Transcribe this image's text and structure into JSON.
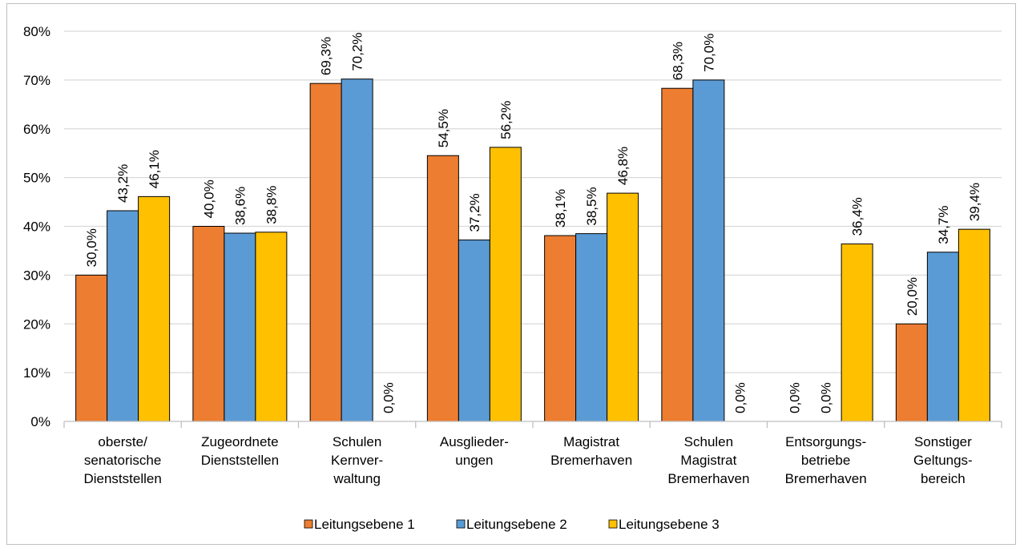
{
  "chart_data": {
    "type": "bar",
    "title": "",
    "xlabel": "",
    "ylabel": "",
    "ylim": [
      0,
      80
    ],
    "y_ticks": [
      "0%",
      "10%",
      "20%",
      "30%",
      "40%",
      "50%",
      "60%",
      "70%",
      "80%"
    ],
    "grid": true,
    "legend_position": "bottom",
    "categories": [
      [
        "oberste/",
        "senatorische",
        "Dienststellen"
      ],
      [
        "Zugeordnete",
        "Dienststellen"
      ],
      [
        "Schulen",
        "Kernver-",
        "waltung"
      ],
      [
        "Ausglieder-",
        "ungen"
      ],
      [
        "Magistrat",
        "Bremerhaven"
      ],
      [
        "Schulen",
        "Magistrat",
        "Bremerhaven"
      ],
      [
        "Entsorgungs-",
        "betriebe",
        "Bremerhaven"
      ],
      [
        "Sonstiger",
        "Geltungs-",
        "bereich"
      ]
    ],
    "series": [
      {
        "name": "Leitungsebene 1",
        "color": "#ED7D31",
        "values": [
          30.0,
          40.0,
          69.3,
          54.5,
          38.1,
          68.3,
          0.0,
          20.0
        ],
        "labels": [
          "30,0%",
          "40,0%",
          "69,3%",
          "54,5%",
          "38,1%",
          "68,3%",
          "0,0%",
          "20,0%"
        ]
      },
      {
        "name": "Leitungsebene 2",
        "color": "#5B9BD5",
        "values": [
          43.2,
          38.6,
          70.2,
          37.2,
          38.5,
          70.0,
          0.0,
          34.7
        ],
        "labels": [
          "43,2%",
          "38,6%",
          "70,2%",
          "37,2%",
          "38,5%",
          "70,0%",
          "0,0%",
          "34,7%"
        ]
      },
      {
        "name": "Leitungsebene 3",
        "color": "#FFC000",
        "values": [
          46.1,
          38.8,
          0.0,
          56.2,
          46.8,
          0.0,
          36.4,
          39.4
        ],
        "labels": [
          "46,1%",
          "38,8%",
          "0,0%",
          "56,2%",
          "46,8%",
          "0,0%",
          "36,4%",
          "39,4%"
        ]
      }
    ]
  }
}
